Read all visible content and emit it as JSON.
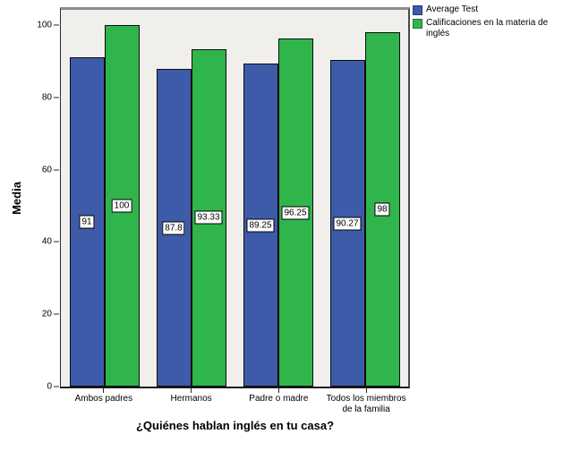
{
  "chart_data": {
    "type": "bar",
    "title": "",
    "xlabel": "¿Quiénes hablan inglés en tu casa?",
    "ylabel": "Media",
    "categories": [
      "Ambos padres",
      "Hermanos",
      "Padre o madre",
      "Todos los miembros de la familia"
    ],
    "series": [
      {
        "name": "Average Test",
        "color": "#3E5BA9",
        "swatch_border": "#1F3B7A",
        "values": [
          91,
          87.8,
          89.25,
          90.27
        ],
        "labels": [
          "91",
          "87.8",
          "89.25",
          "90.27"
        ]
      },
      {
        "name": "Calificaciones en la materia de inglés",
        "color": "#2FB54C",
        "swatch_border": "#1B7A2F",
        "values": [
          100,
          93.33,
          96.25,
          98
        ],
        "labels": [
          "100",
          "93.33",
          "96.25",
          "98"
        ]
      }
    ],
    "yticks": [
      0,
      20,
      40,
      60,
      80,
      100
    ],
    "ylim": [
      0,
      105
    ],
    "grid": false,
    "legend_position": "top-right",
    "plot_bg": "#f0efec",
    "bar_border": "#0d0d0d"
  }
}
